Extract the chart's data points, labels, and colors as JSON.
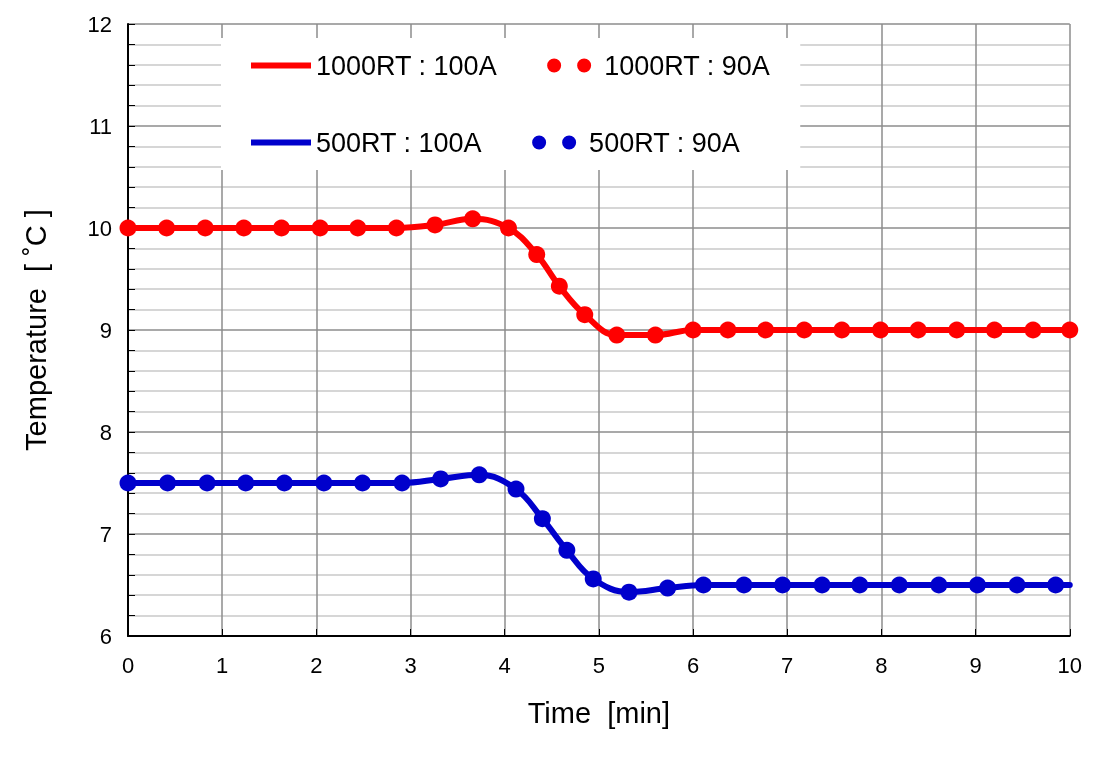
{
  "chart_data": {
    "type": "line",
    "xlabel": "Time  [min]",
    "ylabel": "Temperature  [ ˚C ]",
    "xlim": [
      0,
      10
    ],
    "xticks": [
      0,
      1,
      2,
      3,
      4,
      5,
      6,
      7,
      8,
      9,
      10
    ],
    "ylim": [
      6,
      12
    ],
    "yticks": [
      6,
      {
        "value": 6.2,
        "label": null
      },
      {
        "value": 6.4,
        "label": null
      },
      {
        "value": 6.6,
        "label": null
      },
      {
        "value": 6.8,
        "label": null
      },
      7,
      {
        "value": 7.2,
        "label": null
      },
      {
        "value": 7.4,
        "label": null
      },
      {
        "value": 7.6,
        "label": null
      },
      {
        "value": 7.8,
        "label": null
      },
      8,
      {
        "value": 8.2,
        "label": null
      },
      {
        "value": 8.4,
        "label": null
      },
      {
        "value": 8.6,
        "label": null
      },
      {
        "value": 8.8,
        "label": null
      },
      9,
      {
        "value": 9.2,
        "label": null
      },
      {
        "value": 9.4,
        "label": null
      },
      {
        "value": 9.6,
        "label": null
      },
      {
        "value": 9.8,
        "label": null
      },
      10,
      {
        "value": 10.2,
        "label": null
      },
      {
        "value": 10.4,
        "label": null
      },
      {
        "value": 10.6,
        "label": null
      },
      {
        "value": 10.8,
        "label": null
      },
      11,
      {
        "value": 11.2,
        "label": null
      },
      {
        "value": 11.4,
        "label": null
      },
      {
        "value": 11.6,
        "label": null
      },
      {
        "value": 11.8,
        "label": null
      },
      12
    ],
    "grid": true,
    "legend": "top",
    "series": [
      {
        "name": "1000RT : 100A",
        "marker": "none",
        "line_style": "solid",
        "color": "#ff0000",
        "x": [
          0,
          0.41,
          0.82,
          1.23,
          1.63,
          2.04,
          2.44,
          2.85,
          3.26,
          3.66,
          4.04,
          4.34,
          4.58,
          4.85,
          5.19,
          5.6,
          6.0,
          6.37,
          6.77,
          7.18,
          7.58,
          7.99,
          8.39,
          8.8,
          9.2,
          9.61,
          10.0
        ],
        "values": [
          10.0,
          10.0,
          10.0,
          10.0,
          10.0,
          10.0,
          10.0,
          10.0,
          10.03,
          10.09,
          10.0,
          9.74,
          9.43,
          9.15,
          8.95,
          8.95,
          9.0,
          9.0,
          9.0,
          9.0,
          9.0,
          9.0,
          9.0,
          9.0,
          9.0,
          9.0,
          9.0
        ]
      },
      {
        "name": "1000RT : 90A",
        "type": "scatter",
        "marker": "circle",
        "color": "#ff0000",
        "x": [
          0,
          0.41,
          0.82,
          1.23,
          1.63,
          2.04,
          2.44,
          2.85,
          3.26,
          3.66,
          4.04,
          4.34,
          4.58,
          4.85,
          5.19,
          5.6,
          6.0,
          6.37,
          6.77,
          7.18,
          7.58,
          7.99,
          8.39,
          8.8,
          9.2,
          9.61,
          10.0
        ],
        "values": [
          10.0,
          10.0,
          10.0,
          10.0,
          10.0,
          10.0,
          10.0,
          10.0,
          10.03,
          10.09,
          10.0,
          9.74,
          9.43,
          9.15,
          8.95,
          8.95,
          9.0,
          9.0,
          9.0,
          9.0,
          9.0,
          9.0,
          9.0,
          9.0,
          9.0,
          9.0,
          9.0
        ]
      },
      {
        "name": "500RT : 100A",
        "marker": "none",
        "line_style": "solid",
        "color": "#0000cc",
        "x": [
          0,
          0.42,
          0.84,
          1.25,
          1.66,
          2.08,
          2.49,
          2.91,
          3.32,
          3.73,
          4.12,
          4.4,
          4.66,
          4.94,
          5.32,
          5.73,
          6.11,
          6.54,
          6.95,
          7.37,
          7.77,
          8.19,
          8.61,
          9.02,
          9.44,
          9.85,
          10.0
        ],
        "values": [
          7.5,
          7.5,
          7.5,
          7.5,
          7.5,
          7.5,
          7.5,
          7.5,
          7.54,
          7.58,
          7.44,
          7.15,
          6.84,
          6.56,
          6.43,
          6.47,
          6.5,
          6.5,
          6.5,
          6.5,
          6.5,
          6.5,
          6.5,
          6.5,
          6.5,
          6.5,
          6.5
        ]
      },
      {
        "name": "500RT : 90A",
        "type": "scatter",
        "marker": "circle",
        "color": "#0000cc",
        "x": [
          0,
          0.42,
          0.84,
          1.25,
          1.66,
          2.08,
          2.49,
          2.91,
          3.32,
          3.73,
          4.12,
          4.4,
          4.66,
          4.94,
          5.32,
          5.73,
          6.11,
          6.54,
          6.95,
          7.37,
          7.77,
          8.19,
          8.61,
          9.02,
          9.44,
          9.85
        ],
        "values": [
          7.5,
          7.5,
          7.5,
          7.5,
          7.5,
          7.5,
          7.5,
          7.5,
          7.54,
          7.58,
          7.44,
          7.15,
          6.84,
          6.56,
          6.43,
          6.47,
          6.5,
          6.5,
          6.5,
          6.5,
          6.5,
          6.5,
          6.5,
          6.5,
          6.5,
          6.5
        ]
      }
    ]
  }
}
